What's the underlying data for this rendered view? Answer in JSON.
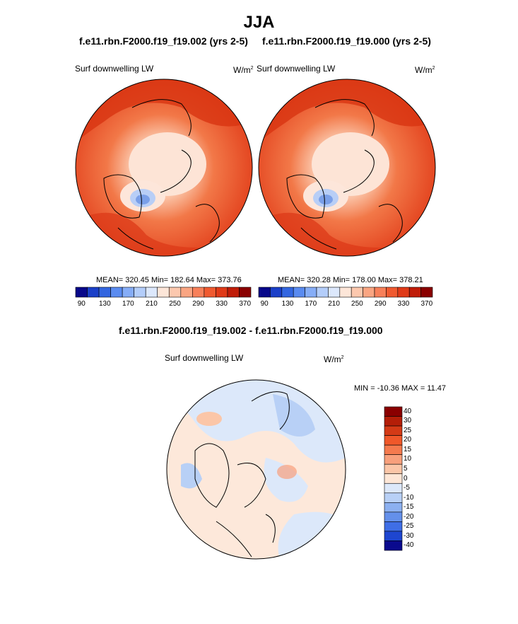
{
  "title": "JJA",
  "panels": [
    {
      "case_title": "f.e11.rbn.F2000.f19_f19.002 (yrs 2-5)",
      "variable": "Surf downwelling LW",
      "units": "W/m",
      "units_exp": "2",
      "stats": "MEAN= 320.45  Min= 182.64  Max= 373.76"
    },
    {
      "case_title": "f.e11.rbn.F2000.f19_f19.000 (yrs 2-5)",
      "variable": "Surf downwelling LW",
      "units": "W/m",
      "units_exp": "2",
      "stats": "MEAN= 320.28  Min= 178.00  Max= 378.21"
    }
  ],
  "abs_colorbar": {
    "colors": [
      "#08088a",
      "#1a3fc8",
      "#3366e0",
      "#5a8bf0",
      "#86adf7",
      "#b3cdfa",
      "#dce8fc",
      "#fde6d8",
      "#fcc8ae",
      "#faa582",
      "#f7805a",
      "#f05a30",
      "#e03a18",
      "#c01c08",
      "#8a0000"
    ],
    "tick_labels": [
      "90",
      "130",
      "170",
      "210",
      "250",
      "290",
      "330",
      "370"
    ]
  },
  "diff": {
    "title": "f.e11.rbn.F2000.f19_f19.002 - f.e11.rbn.F2000.f19_f19.000",
    "variable": "Surf downwelling LW",
    "units": "W/m",
    "units_exp": "2",
    "stats": "MIN = -10.36 MAX =  11.47",
    "colorbar": {
      "colors": [
        "#8a0000",
        "#b41e08",
        "#d43a16",
        "#f0582a",
        "#f57a4e",
        "#f8a07c",
        "#fbc6a8",
        "#fde6d6",
        "#dce8fa",
        "#b8d0f6",
        "#8cb0f0",
        "#6490ea",
        "#3f6ee6",
        "#1e46d0",
        "#0a0a8e"
      ],
      "tick_labels": [
        "40",
        "30",
        "25",
        "20",
        "15",
        "10",
        "5",
        "0",
        "-5",
        "-10",
        "-15",
        "-20",
        "-25",
        "-30",
        "-40"
      ]
    }
  }
}
